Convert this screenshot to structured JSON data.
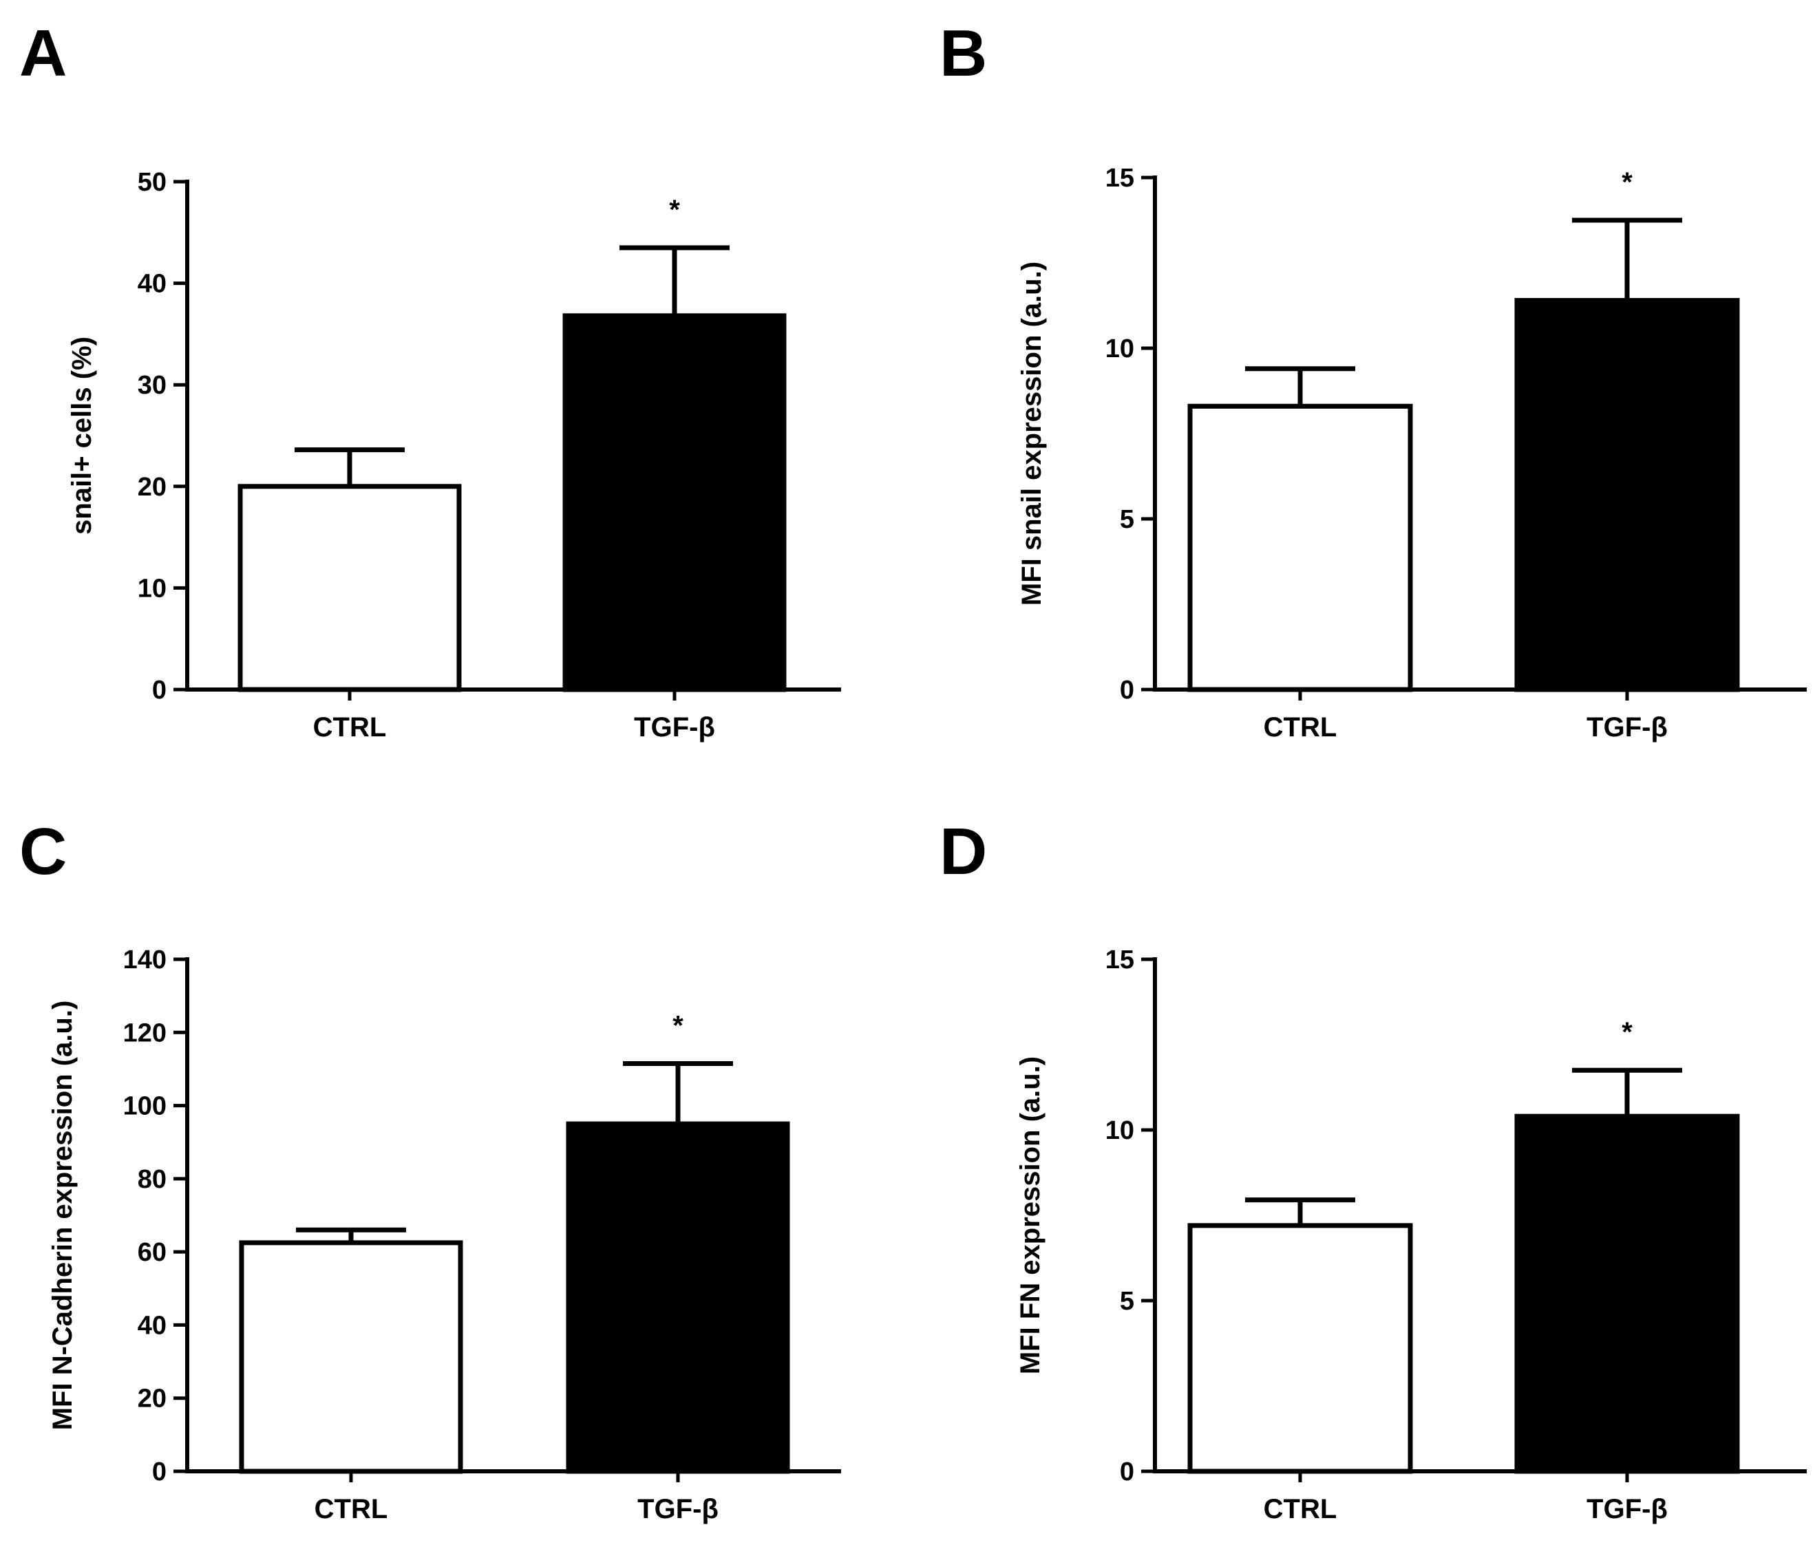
{
  "figure": {
    "panels": [
      "A",
      "B",
      "C",
      "D"
    ]
  },
  "chart_data": [
    {
      "panel": "A",
      "type": "bar",
      "categories": [
        "CTRL",
        "TGF-β"
      ],
      "values": [
        20,
        36.8
      ],
      "errors": [
        3.6,
        6.7
      ],
      "significance": [
        "",
        "*"
      ],
      "bar_fills": [
        "#ffffff",
        "#000000"
      ],
      "ylabel": "snail+ cells (%)",
      "xlabel": "",
      "ylim": [
        0,
        50
      ],
      "yticks": [
        0,
        10,
        20,
        30,
        40,
        50
      ],
      "grid": false
    },
    {
      "panel": "B",
      "type": "bar",
      "categories": [
        "CTRL",
        "TGF-β"
      ],
      "values": [
        8.3,
        11.4
      ],
      "errors": [
        1.1,
        2.35
      ],
      "significance": [
        "",
        "*"
      ],
      "bar_fills": [
        "#ffffff",
        "#000000"
      ],
      "ylabel": "MFI snail expression (a.u.)",
      "xlabel": "",
      "ylim": [
        0,
        15
      ],
      "yticks": [
        0,
        5,
        10,
        15
      ],
      "grid": false
    },
    {
      "panel": "C",
      "type": "bar",
      "categories": [
        "CTRL",
        "TGF-β"
      ],
      "values": [
        62.5,
        95
      ],
      "errors": [
        3.5,
        16.5
      ],
      "significance": [
        "",
        "*"
      ],
      "bar_fills": [
        "#ffffff",
        "#000000"
      ],
      "ylabel": "MFI N-Cadherin expression (a.u.)",
      "xlabel": "",
      "ylim": [
        0,
        140
      ],
      "yticks": [
        0,
        20,
        40,
        60,
        80,
        100,
        120,
        140
      ],
      "grid": false
    },
    {
      "panel": "D",
      "type": "bar",
      "categories": [
        "CTRL",
        "TGF-β"
      ],
      "values": [
        7.2,
        10.4
      ],
      "errors": [
        0.75,
        1.35
      ],
      "significance": [
        "",
        "*"
      ],
      "bar_fills": [
        "#ffffff",
        "#000000"
      ],
      "ylabel": "MFI FN expression (a.u.)",
      "xlabel": "",
      "ylim": [
        0,
        15
      ],
      "yticks": [
        0,
        5,
        10,
        15
      ],
      "grid": false
    }
  ]
}
